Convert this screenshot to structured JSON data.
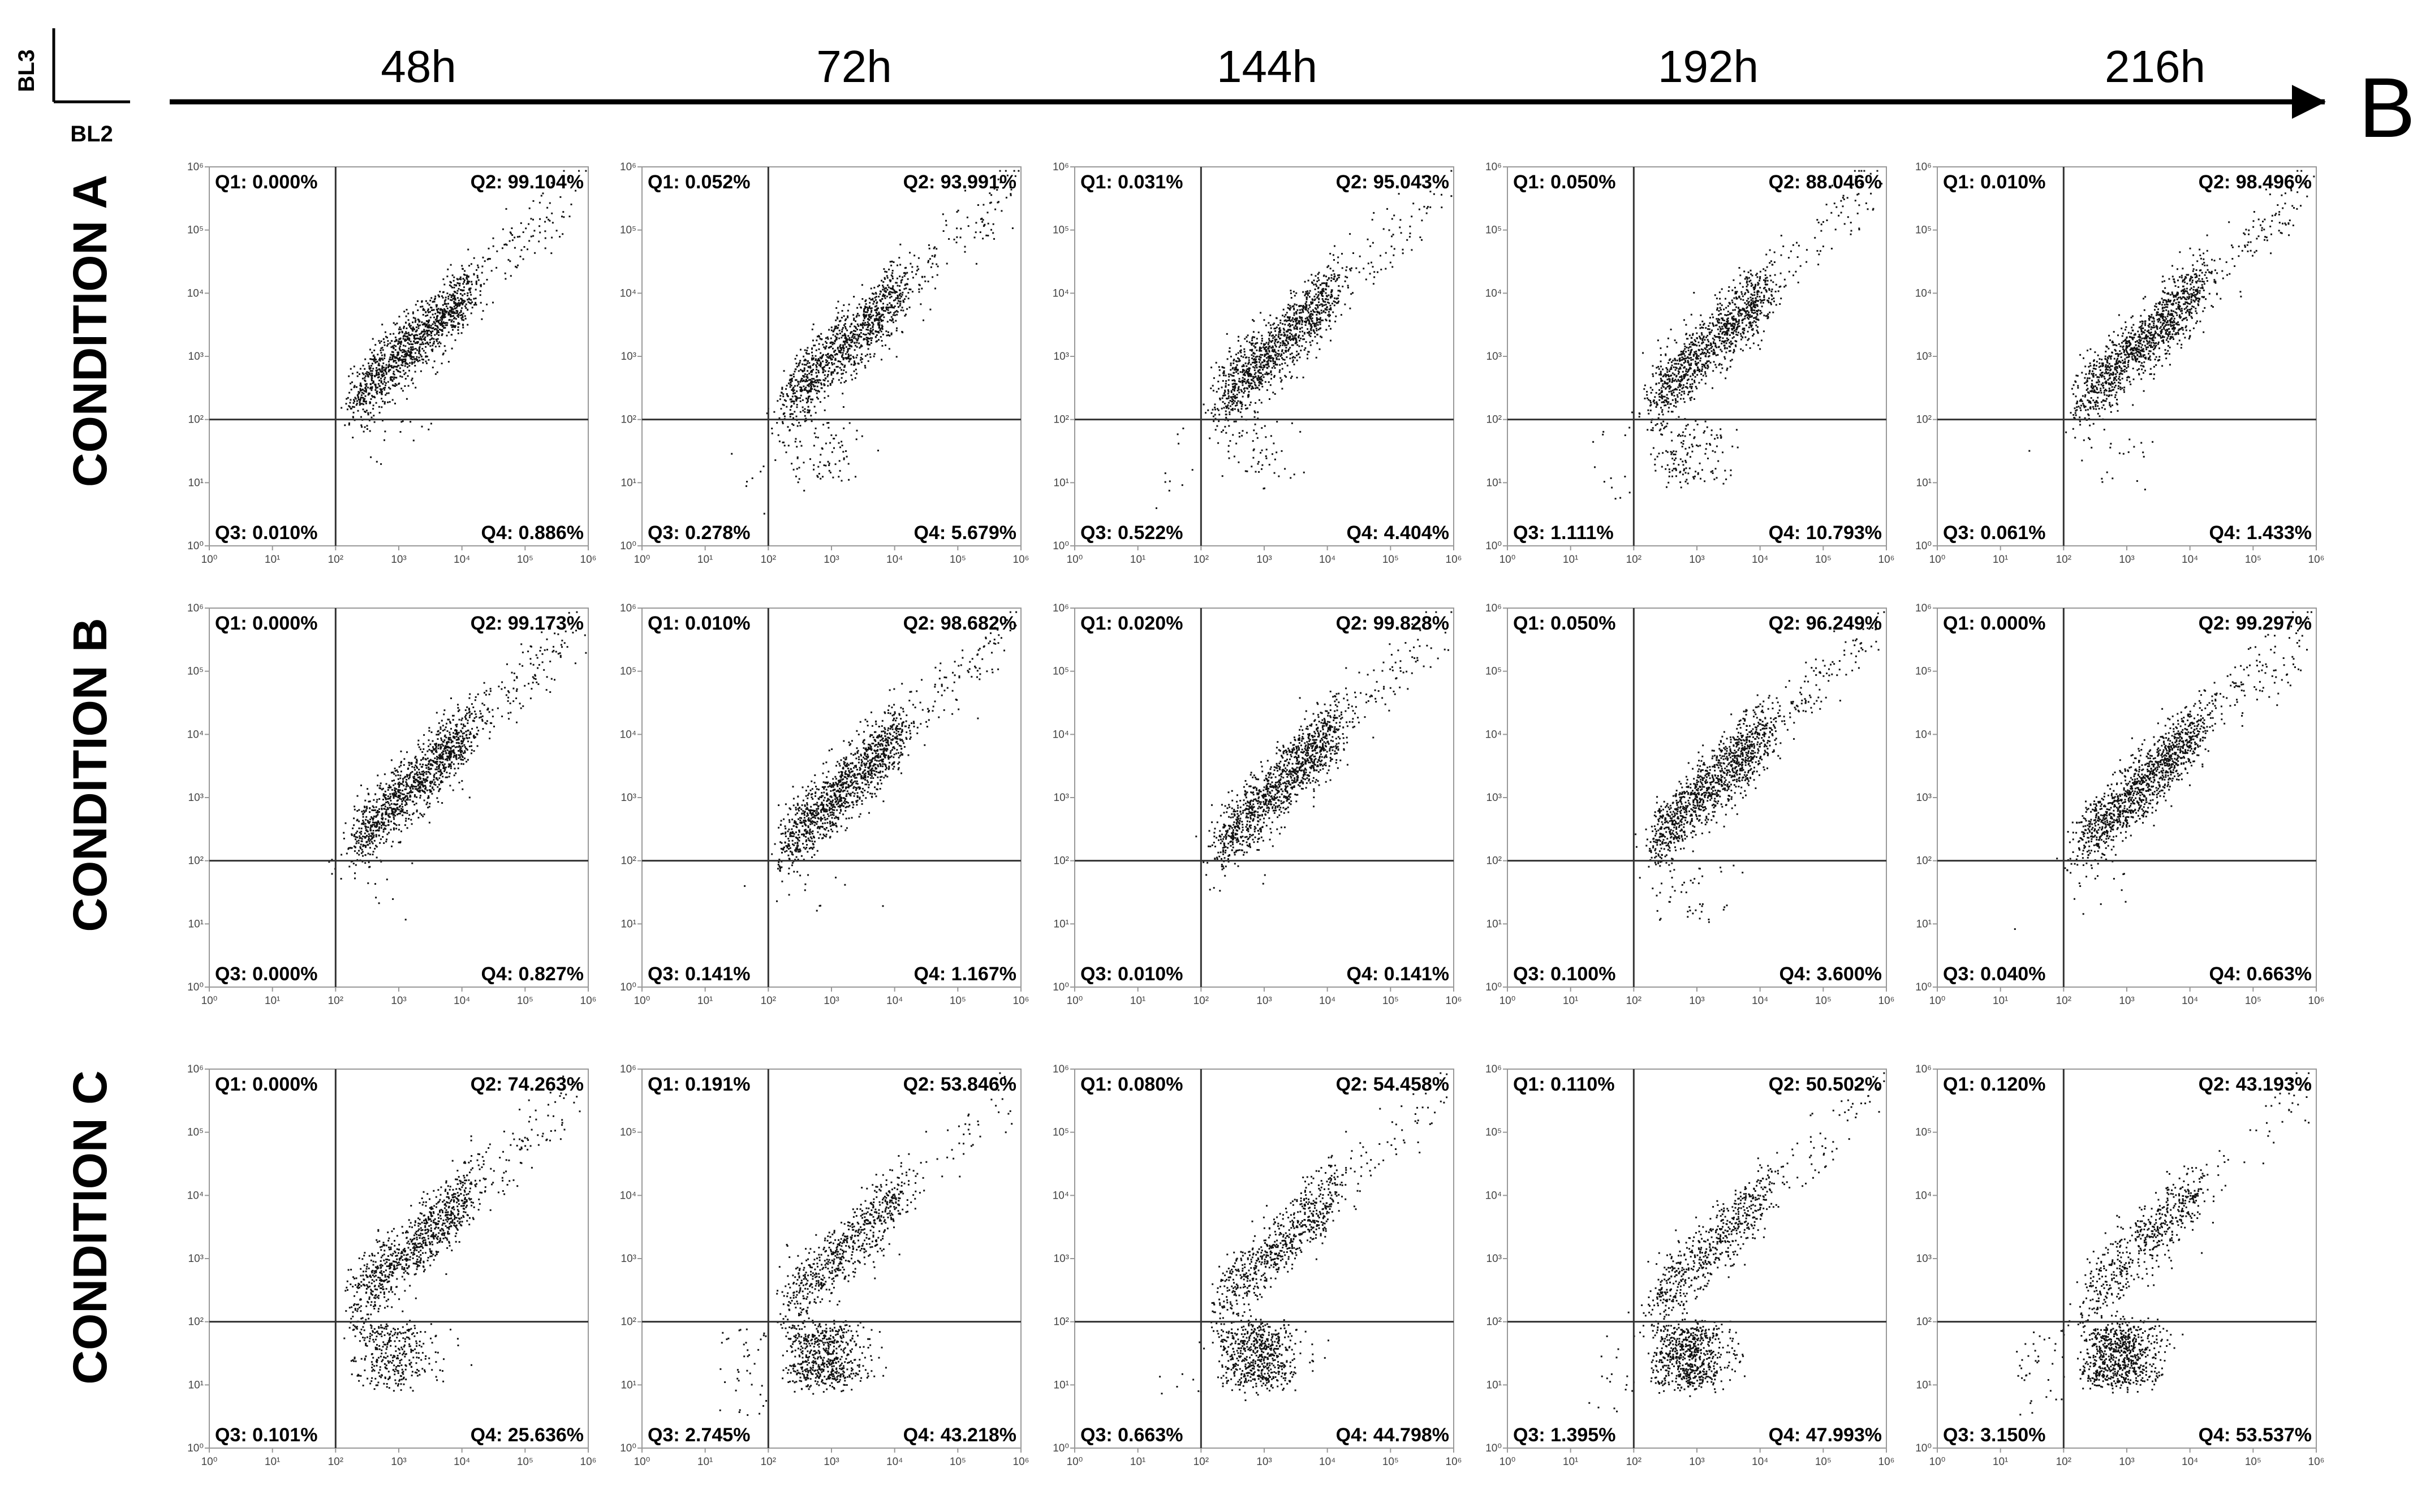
{
  "figure": {
    "panel_label": "B",
    "axis_y_label": "BL3",
    "axis_x_label": "BL2",
    "timepoints": [
      "48h",
      "72h",
      "144h",
      "192h",
      "216h"
    ],
    "conditions": [
      "CONDITION A",
      "CONDITION B",
      "CONDITION C"
    ]
  },
  "chart_data": {
    "type": "scatter",
    "x_axis": {
      "scale": "log",
      "range": [
        1,
        1000000
      ],
      "ticks": [
        1,
        10,
        100,
        1000,
        10000,
        100000,
        1000000
      ]
    },
    "y_axis": {
      "scale": "log",
      "range": [
        1,
        1000000
      ],
      "ticks": [
        1,
        10,
        100,
        1000,
        10000,
        100000,
        1000000
      ]
    },
    "grid": false,
    "panels": [
      {
        "condition": "CONDITION A",
        "time": "48h",
        "gate": [
          100,
          100
        ],
        "q1": "Q1: 0.000%",
        "q2": "Q2: 99.104%",
        "q3": "Q3: 0.010%",
        "q4": "Q4: 0.886%"
      },
      {
        "condition": "CONDITION A",
        "time": "72h",
        "gate": [
          100,
          100
        ],
        "q1": "Q1: 0.052%",
        "q2": "Q2: 93.991%",
        "q3": "Q3: 0.278%",
        "q4": "Q4: 5.679%"
      },
      {
        "condition": "CONDITION A",
        "time": "144h",
        "gate": [
          100,
          100
        ],
        "q1": "Q1: 0.031%",
        "q2": "Q2: 95.043%",
        "q3": "Q3: 0.522%",
        "q4": "Q4: 4.404%"
      },
      {
        "condition": "CONDITION A",
        "time": "192h",
        "gate": [
          100,
          100
        ],
        "q1": "Q1: 0.050%",
        "q2": "Q2: 88.046%",
        "q3": "Q3: 1.111%",
        "q4": "Q4: 10.793%"
      },
      {
        "condition": "CONDITION A",
        "time": "216h",
        "gate": [
          100,
          100
        ],
        "q1": "Q1: 0.010%",
        "q2": "Q2: 98.496%",
        "q3": "Q3: 0.061%",
        "q4": "Q4: 1.433%"
      },
      {
        "condition": "CONDITION B",
        "time": "48h",
        "gate": [
          100,
          100
        ],
        "q1": "Q1: 0.000%",
        "q2": "Q2: 99.173%",
        "q3": "Q3: 0.000%",
        "q4": "Q4: 0.827%"
      },
      {
        "condition": "CONDITION B",
        "time": "72h",
        "gate": [
          100,
          100
        ],
        "q1": "Q1: 0.010%",
        "q2": "Q2: 98.682%",
        "q3": "Q3: 0.141%",
        "q4": "Q4: 1.167%"
      },
      {
        "condition": "CONDITION B",
        "time": "144h",
        "gate": [
          100,
          100
        ],
        "q1": "Q1: 0.020%",
        "q2": "Q2: 99.828%",
        "q3": "Q3: 0.010%",
        "q4": "Q4: 0.141%"
      },
      {
        "condition": "CONDITION B",
        "time": "192h",
        "gate": [
          100,
          100
        ],
        "q1": "Q1: 0.050%",
        "q2": "Q2: 96.249%",
        "q3": "Q3: 0.100%",
        "q4": "Q4: 3.600%"
      },
      {
        "condition": "CONDITION B",
        "time": "216h",
        "gate": [
          100,
          100
        ],
        "q1": "Q1: 0.000%",
        "q2": "Q2: 99.297%",
        "q3": "Q3: 0.040%",
        "q4": "Q4: 0.663%"
      },
      {
        "condition": "CONDITION C",
        "time": "48h",
        "gate": [
          100,
          100
        ],
        "q1": "Q1: 0.000%",
        "q2": "Q2: 74.263%",
        "q3": "Q3: 0.101%",
        "q4": "Q4: 25.636%"
      },
      {
        "condition": "CONDITION C",
        "time": "72h",
        "gate": [
          100,
          100
        ],
        "q1": "Q1: 0.191%",
        "q2": "Q2: 53.846%",
        "q3": "Q3: 2.745%",
        "q4": "Q4: 43.218%"
      },
      {
        "condition": "CONDITION C",
        "time": "144h",
        "gate": [
          100,
          100
        ],
        "q1": "Q1: 0.080%",
        "q2": "Q2: 54.458%",
        "q3": "Q3: 0.663%",
        "q4": "Q4: 44.798%"
      },
      {
        "condition": "CONDITION C",
        "time": "192h",
        "gate": [
          100,
          100
        ],
        "q1": "Q1: 0.110%",
        "q2": "Q2: 50.502%",
        "q3": "Q3: 1.395%",
        "q4": "Q4: 47.993%"
      },
      {
        "condition": "CONDITION C",
        "time": "216h",
        "gate": [
          100,
          100
        ],
        "q1": "Q1: 0.120%",
        "q2": "Q2: 43.193%",
        "q3": "Q3: 3.150%",
        "q4": "Q4: 53.537%"
      }
    ]
  }
}
